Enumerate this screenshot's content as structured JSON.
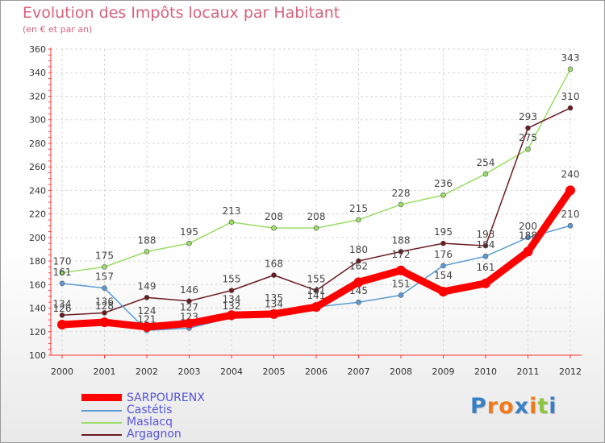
{
  "chart_data": {
    "type": "line",
    "title": "Evolution des Impôts locaux par Habitant",
    "subtitle": "(en € et par an)",
    "xlabel": "",
    "ylabel": "",
    "x": [
      "2000",
      "2001",
      "2002",
      "2003",
      "2004",
      "2005",
      "2006",
      "2007",
      "2008",
      "2009",
      "2010",
      "2011",
      "2012"
    ],
    "ylim": [
      100,
      360
    ],
    "yticks": [
      100,
      120,
      140,
      160,
      180,
      200,
      220,
      240,
      260,
      280,
      300,
      320,
      340,
      360
    ],
    "grid": true,
    "legend_position": "bottom-left",
    "series": [
      {
        "name": "SARPOURENX",
        "color": "#ff0000",
        "values": [
          126,
          128,
          124,
          127,
          134,
          135,
          141,
          162,
          172,
          154,
          161,
          188,
          240
        ]
      },
      {
        "name": "Castétis",
        "color": "#5b9bd5",
        "values": [
          161,
          157,
          121,
          123,
          132,
          134,
          141,
          145,
          151,
          176,
          184,
          200,
          210
        ]
      },
      {
        "name": "Maslacq",
        "color": "#99dd66",
        "values": [
          170,
          175,
          188,
          195,
          213,
          208,
          208,
          215,
          228,
          236,
          254,
          275,
          343
        ]
      },
      {
        "name": "Argagnon",
        "color": "#6b1a22",
        "values": [
          134,
          136,
          149,
          146,
          155,
          168,
          155,
          180,
          188,
          195,
          193,
          293,
          310
        ]
      }
    ],
    "legend_text_color": "#5555dd"
  },
  "logo": {
    "letters": [
      "P",
      "r",
      "o",
      "x",
      "i",
      "t",
      "i"
    ],
    "colors": [
      "#3a7fc4",
      "#f07a1a",
      "#f07a1a",
      "#3a7fc4",
      "#f07a1a",
      "#8cc63f",
      "#3a7fc4"
    ]
  }
}
